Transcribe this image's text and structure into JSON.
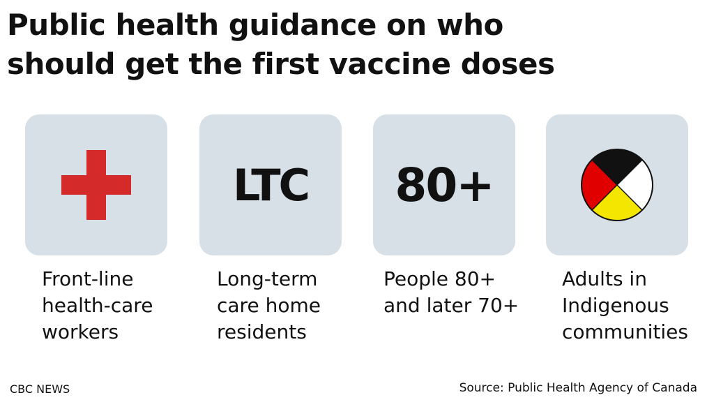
{
  "title": {
    "line1": "Public health guidance on who",
    "line2": "should get the first vaccine doses"
  },
  "cards": [
    {
      "icon": "red-cross-icon",
      "icon_color": "#d42a2a",
      "caption": [
        "Front-line",
        "health-care",
        "workers"
      ]
    },
    {
      "label": "LTC",
      "caption": [
        "Long-term",
        "care home",
        "residents"
      ]
    },
    {
      "label": "80+",
      "caption": [
        "People 80+",
        "and later 70+"
      ]
    },
    {
      "icon": "medicine-wheel-icon",
      "icon_colors": {
        "top_left": "#111111",
        "right": "#ffffff",
        "bottom": "#f5e600",
        "left": "#e00000"
      },
      "caption": [
        "Adults in",
        "Indigenous",
        "communities"
      ]
    }
  ],
  "footer": {
    "brand": "CBC NEWS",
    "source": "Source: Public Health Agency of Canada"
  },
  "colors": {
    "card_background": "#d6e0e6",
    "text": "#111111"
  }
}
